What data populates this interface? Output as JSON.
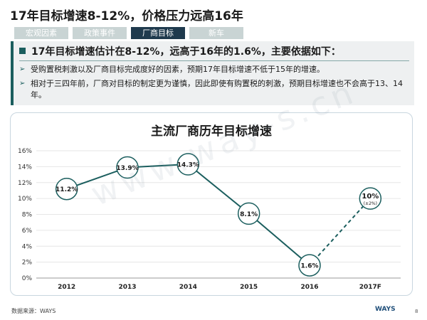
{
  "page_title": "17年目标增速8-12%，价格压力远高16年",
  "tabs": [
    {
      "label": "宏观因素",
      "active": false
    },
    {
      "label": "政策事件",
      "active": false
    },
    {
      "label": "厂商目标",
      "active": true
    },
    {
      "label": "新车",
      "active": false
    }
  ],
  "panel": {
    "heading": "17年目标增速估计在8-12%，远高于16年的1.6%，主要依据如下：",
    "bullets": [
      "受购置税刺激以及厂商目标完成度好的因素，预期17年目标增速不低于15年的增速。",
      "相对于三四年前，厂商对目标的制定更为谨慎，因此即使有购置税的刺激，预期目标增速也不会高于13、14年。"
    ]
  },
  "chart_data": {
    "type": "line",
    "title": "主流厂商历年目标增速",
    "categories": [
      "2012",
      "2013",
      "2014",
      "2015",
      "2016",
      "2017F"
    ],
    "values": [
      11.2,
      13.9,
      14.3,
      8.1,
      1.6,
      10
    ],
    "data_labels": [
      "11.2%",
      "13.9%",
      "14.3%",
      "8.1%",
      "1.6%",
      "10%"
    ],
    "sub_label_2017F": "(±2%)",
    "forecast_segment": "dashed from 2016 to 2017F",
    "ylim": [
      0,
      16
    ],
    "yticks": [
      "0%",
      "2%",
      "4%",
      "6%",
      "8%",
      "10%",
      "12%",
      "14%",
      "16%"
    ],
    "ytick_values": [
      0,
      2,
      4,
      6,
      8,
      10,
      12,
      14,
      16
    ],
    "grid": true,
    "colors": {
      "line": "#1b5e5e",
      "marker_border": "#1b5e5e",
      "grid": "#e6e6e6"
    }
  },
  "footer": {
    "source": "数据来源：WAYS",
    "logo": "WAYS",
    "page_number": "8"
  },
  "watermark": "www.way-s.cn"
}
